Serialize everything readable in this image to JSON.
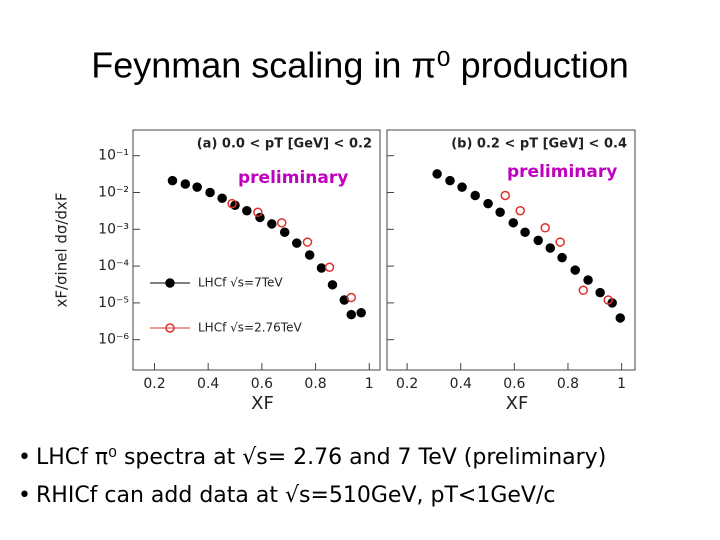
{
  "title": "Feynman scaling in π⁰ production",
  "bullets": [
    "LHCf  π⁰ spectra at √s= 2.76 and 7 TeV (preliminary)",
    "RHICf can add data at √s=510GeV,  pT<1GeV/c"
  ],
  "chart_data": [
    {
      "type": "scatter",
      "title": "(a) 0.0 < pT [GeV] < 0.2",
      "annotation": "preliminary",
      "xlabel": "XF",
      "ylabel": "xF/σinel dσ/dxF",
      "xlim": [
        0.12,
        1.04
      ],
      "xticks": [
        0.2,
        0.4,
        0.6,
        0.8,
        1
      ],
      "ylim": [
        1.5e-07,
        0.5
      ],
      "ylog": true,
      "show_ytick_labels": true,
      "legend": true,
      "yticks": [
        {
          "value": 0.1,
          "label": "10⁻¹"
        },
        {
          "value": 0.01,
          "label": "10⁻²"
        },
        {
          "value": 0.001,
          "label": "10⁻³"
        },
        {
          "value": 0.0001,
          "label": "10⁻⁴"
        },
        {
          "value": 1e-05,
          "label": "10⁻⁵"
        },
        {
          "value": 1e-06,
          "label": "10⁻⁶"
        }
      ],
      "series": [
        {
          "name": "LHCf √s=7TeV",
          "color": "#000000",
          "filled": true,
          "x": [
            0.267,
            0.315,
            0.359,
            0.407,
            0.452,
            0.5,
            0.544,
            0.593,
            0.637,
            0.685,
            0.73,
            0.778,
            0.822,
            0.863,
            0.907,
            0.933,
            0.97
          ],
          "values": [
            0.021,
            0.017,
            0.014,
            0.01,
            0.007,
            0.0045,
            0.0032,
            0.0021,
            0.0014,
            0.00083,
            0.00042,
            0.0002,
            8.9e-05,
            3.1e-05,
            1.2e-05,
            4.8e-06,
            5.4e-06
          ]
        },
        {
          "name": "LHCf √s=2.76TeV",
          "color": "#e0302a",
          "filled": false,
          "x": [
            0.489,
            0.585,
            0.674,
            0.77,
            0.852,
            0.933
          ],
          "values": [
            0.005,
            0.0029,
            0.0015,
            0.00045,
            9.3e-05,
            1.4e-05
          ]
        }
      ]
    },
    {
      "type": "scatter",
      "title": "(b) 0.2 < pT [GeV] < 0.4",
      "annotation": "preliminary",
      "xlabel": "XF",
      "xlim": [
        0.125,
        1.05
      ],
      "xticks": [
        0.2,
        0.4,
        0.6,
        0.8,
        1
      ],
      "ylim": [
        1.5e-07,
        0.5
      ],
      "ylog": true,
      "show_ytick_labels": false,
      "legend": false,
      "yticks": [
        0.1,
        0.01,
        0.001,
        0.0001,
        1e-05,
        1e-06
      ],
      "series": [
        {
          "color": "#000000",
          "filled": true,
          "x": [
            0.312,
            0.36,
            0.405,
            0.454,
            0.502,
            0.547,
            0.596,
            0.64,
            0.689,
            0.734,
            0.778,
            0.827,
            0.875,
            0.92,
            0.965,
            0.995
          ],
          "values": [
            0.032,
            0.021,
            0.014,
            0.0083,
            0.005,
            0.0029,
            0.0015,
            0.00083,
            0.0005,
            0.00031,
            0.00017,
            7.8e-05,
            4.2e-05,
            1.9e-05,
            1e-05,
            3.9e-06
          ]
        },
        {
          "color": "#e0302a",
          "filled": false,
          "x": [
            0.566,
            0.622,
            0.715,
            0.771,
            0.857,
            0.95
          ],
          "values": [
            0.0083,
            0.0032,
            0.0011,
            0.00045,
            2.2e-05,
            1.2e-05
          ]
        }
      ]
    }
  ]
}
